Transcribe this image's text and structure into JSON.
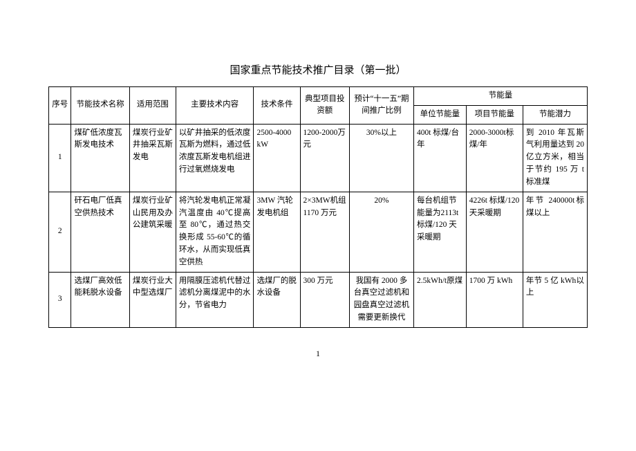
{
  "title": "国家重点节能技术推广目录（第一批）",
  "page_number": "1",
  "columns": {
    "c1": "序号",
    "c2": "节能技术名称",
    "c3": "适用范围",
    "c4": "主要技术内容",
    "c5": "技术条件",
    "c6": "典型项目投资额",
    "c7": "预计“十一五”期间推广比例",
    "c8_group": "节能量",
    "c8a": "单位节能量",
    "c8b": "项目节能量",
    "c8c": "节能潜力"
  },
  "col_widths": {
    "c1": "30px",
    "c2": "78px",
    "c3": "62px",
    "c4": "104px",
    "c5": "62px",
    "c6": "66px",
    "c7": "86px",
    "c8a": "70px",
    "c8b": "76px",
    "c8c": "86px"
  },
  "rows": [
    {
      "no": "1",
      "name": "煤矿低浓度瓦斯发电技术",
      "scope": "煤炭行业矿井抽采瓦斯发电",
      "content": "以矿井抽采的低浓度瓦斯为燃料，通过低浓度瓦斯发电机组进行过氧燃烧发电",
      "cond": "2500-4000 kW",
      "invest": "1200-2000万元",
      "ratio": "30%以上",
      "unit": "400t 标煤/台年",
      "proj": "2000-3000t标煤/年",
      "potential": "到 2010 年瓦斯气利用量达到 20 亿立方米，相当于节约 195 万 t 标准煤"
    },
    {
      "no": "2",
      "name": "矸石电厂低真空供热技术",
      "scope": "煤炭行业矿山民用及办公建筑采暖",
      "content": "将汽轮发电机正常凝汽温度由 40℃提高至 80℃，通过热交换形成 55-60℃的循环水，从而实现低真空供热",
      "cond": "3MW 汽轮发电机组",
      "invest": "2×3MW机组1170 万元",
      "ratio": "20%",
      "unit": "每台机组节能量为2113t 标煤/120 天采暖期",
      "proj": "4226t 标煤/120 天采暖期",
      "potential": "年节 240000t标煤以上"
    },
    {
      "no": "3",
      "name": "选煤厂高效低能耗脱水设备",
      "scope": "煤炭行业大中型选煤厂",
      "content": "用隔膜压滤机代替过滤机分离煤泥中的水分，节省电力",
      "cond": "选煤厂的脱水设备",
      "invest": "300 万元",
      "ratio": "我国有 2000 多台真空过滤机和园盘真空过滤机需要更新换代",
      "unit": "2.5kWh/t原煤",
      "proj": "1700 万 kWh",
      "potential": "年节 5 亿 kWh以上"
    }
  ]
}
